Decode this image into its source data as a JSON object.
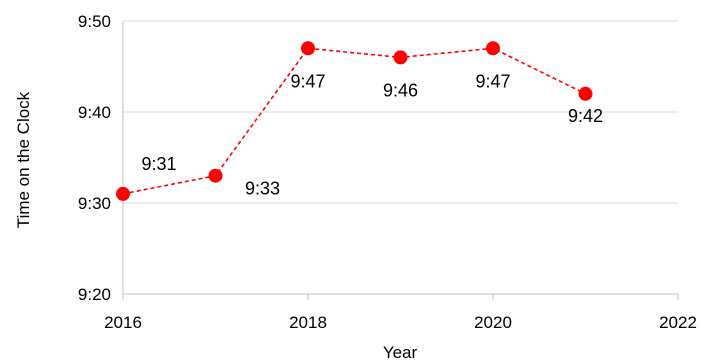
{
  "chart_data": {
    "type": "line",
    "title": "",
    "xlabel": "Year",
    "ylabel": "Time on the Clock",
    "xlim": [
      2016,
      2022
    ],
    "x_ticks": [
      2016,
      2018,
      2020,
      2022
    ],
    "x_tick_labels": [
      "2016",
      "2018",
      "2020",
      "2022"
    ],
    "ylim_minutes": [
      20,
      50
    ],
    "y_ticks_minutes": [
      20,
      30,
      40,
      50
    ],
    "y_tick_labels": [
      "9:20",
      "9:30",
      "9:40",
      "9:50"
    ],
    "grid": "horizontal",
    "legend": "none",
    "series": [
      {
        "x": [
          2016,
          2017,
          2018,
          2019,
          2020,
          2021
        ],
        "y_minutes": [
          31,
          33,
          47,
          46,
          47,
          42
        ],
        "labels": [
          "9:31",
          "9:33",
          "9:47",
          "9:46",
          "9:47",
          "9:42"
        ],
        "color": "#ff0000",
        "line_style": "dashed",
        "marker": "circle"
      }
    ]
  },
  "colors": {
    "series": "#ff0000",
    "grid": "#d9d9d9",
    "axis": "#bfbfbf",
    "text": "#000000"
  }
}
